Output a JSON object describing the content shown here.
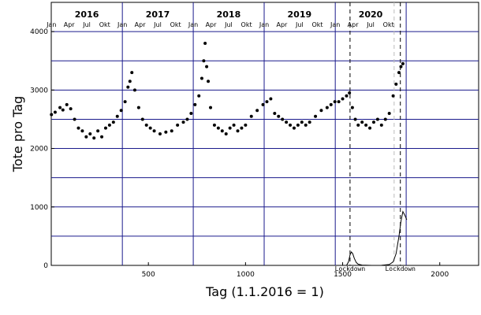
{
  "chart_data": {
    "type": "scatter",
    "xlabel": "Tag (1.1.2016 = 1)",
    "ylabel": "Tote pro Tag",
    "xlim": [
      0,
      2200
    ],
    "ylim": [
      0,
      4500
    ],
    "x_ticks": [
      500,
      1000,
      1500,
      2000
    ],
    "y_ticks": [
      0,
      1000,
      2000,
      3000,
      4000
    ],
    "y_gridlines": [
      500,
      1000,
      1500,
      2000,
      2500,
      3000,
      3500,
      4000
    ],
    "year_boundaries": [
      366,
      731,
      1096,
      1462,
      1827
    ],
    "years": [
      {
        "label": "2016",
        "x": 183
      },
      {
        "label": "2017",
        "x": 548
      },
      {
        "label": "2018",
        "x": 913
      },
      {
        "label": "2019",
        "x": 1278
      },
      {
        "label": "2020",
        "x": 1644
      }
    ],
    "month_labels": [
      {
        "label": "Jan",
        "x": 1
      },
      {
        "label": "Apr",
        "x": 92
      },
      {
        "label": "Jul",
        "x": 183
      },
      {
        "label": "Okt",
        "x": 275
      },
      {
        "label": "Jan",
        "x": 366
      },
      {
        "label": "Apr",
        "x": 457
      },
      {
        "label": "Jul",
        "x": 548
      },
      {
        "label": "Okt",
        "x": 640
      },
      {
        "label": "Jan",
        "x": 731
      },
      {
        "label": "Apr",
        "x": 822
      },
      {
        "label": "Jul",
        "x": 913
      },
      {
        "label": "Okt",
        "x": 1005
      },
      {
        "label": "Jan",
        "x": 1096
      },
      {
        "label": "Apr",
        "x": 1187
      },
      {
        "label": "Jul",
        "x": 1278
      },
      {
        "label": "Okt",
        "x": 1370
      },
      {
        "label": "Jan",
        "x": 1462
      },
      {
        "label": "Apr",
        "x": 1553
      },
      {
        "label": "Jul",
        "x": 1644
      },
      {
        "label": "Okt",
        "x": 1736
      }
    ],
    "lockdowns": [
      {
        "label": "Lockdown",
        "x": 1538
      },
      {
        "label": "Lockdown",
        "x": 1797
      }
    ],
    "lockdown_end_line": {
      "x": 1765
    },
    "series": [
      {
        "kind": "daily-deaths-dots",
        "x": [
          1,
          20,
          45,
          60,
          80,
          100,
          120,
          140,
          160,
          180,
          200,
          220,
          240,
          260,
          280,
          300,
          320,
          340,
          360,
          380,
          395,
          405,
          415,
          430,
          450,
          470,
          490,
          510,
          530,
          560,
          590,
          620,
          650,
          680,
          700,
          720,
          740,
          760,
          775,
          785,
          792,
          800,
          808,
          820,
          840,
          860,
          880,
          900,
          920,
          940,
          960,
          980,
          1000,
          1030,
          1060,
          1090,
          1110,
          1130,
          1150,
          1170,
          1190,
          1210,
          1230,
          1250,
          1270,
          1290,
          1310,
          1330,
          1360,
          1390,
          1420,
          1440,
          1460,
          1480,
          1500,
          1520,
          1535,
          1550,
          1565,
          1580,
          1600,
          1620,
          1640,
          1660,
          1680,
          1700,
          1720,
          1740,
          1760,
          1775,
          1790,
          1800,
          1810
        ],
        "y": [
          2580,
          2620,
          2700,
          2660,
          2750,
          2680,
          2500,
          2350,
          2300,
          2200,
          2250,
          2180,
          2300,
          2200,
          2350,
          2400,
          2450,
          2550,
          2650,
          2800,
          3050,
          3150,
          3300,
          3000,
          2700,
          2500,
          2400,
          2350,
          2300,
          2250,
          2280,
          2300,
          2400,
          2450,
          2500,
          2600,
          2750,
          2900,
          3200,
          3500,
          3800,
          3400,
          3150,
          2700,
          2400,
          2350,
          2300,
          2250,
          2350,
          2400,
          2300,
          2350,
          2400,
          2550,
          2650,
          2750,
          2800,
          2850,
          2600,
          2550,
          2500,
          2450,
          2400,
          2350,
          2400,
          2450,
          2400,
          2450,
          2550,
          2650,
          2700,
          2750,
          2800,
          2800,
          2850,
          2900,
          2950,
          2700,
          2500,
          2400,
          2450,
          2400,
          2350,
          2450,
          2500,
          2400,
          2500,
          2600,
          2900,
          3100,
          3300,
          3400,
          3450
        ]
      },
      {
        "kind": "covid-deaths-line",
        "x": [
          1520,
          1530,
          1538,
          1545,
          1552,
          1560,
          1570,
          1580,
          1600,
          1650,
          1700,
          1740,
          1760,
          1775,
          1790,
          1800,
          1810,
          1820,
          1830
        ],
        "y": [
          0,
          60,
          180,
          230,
          200,
          120,
          50,
          20,
          5,
          0,
          2,
          15,
          60,
          200,
          500,
          750,
          920,
          860,
          780
        ]
      }
    ]
  }
}
